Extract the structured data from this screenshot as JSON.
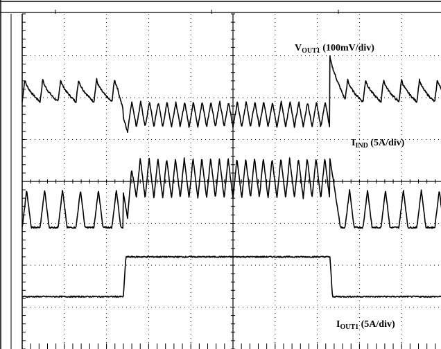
{
  "chart_data": {
    "type": "line",
    "title": "",
    "xlabel": "",
    "ylabel": "",
    "grid": true,
    "divisions": {
      "x": 10,
      "y": 8
    },
    "ylim": [
      0,
      8
    ],
    "xlim": [
      0,
      10
    ],
    "load_step": {
      "rise_div": 2.4,
      "fall_div": 7.3
    },
    "series": [
      {
        "name": "VOUT1 (100mV/div)",
        "scale": "100mV/div",
        "label_main": "V",
        "label_sub": "OUT1",
        "label_scale": " (100mV/div)",
        "baseline_div_light": 5.9,
        "baseline_div_heavy": 5.6,
        "ripple_div_light": 0.55,
        "ripple_div_heavy": 0.6,
        "pulses_per_div_light": 2.35,
        "pulses_per_div_heavy": 4.8
      },
      {
        "name": "IIND (5A/div)",
        "scale": "5A/div",
        "label_main": "I",
        "label_sub": "IND",
        "label_scale": " (5A/div)",
        "low_div_light": 2.9,
        "high_div_light": 3.8,
        "low_div_heavy": 3.6,
        "high_div_heavy": 4.55,
        "pulses_per_div_light": 2.35,
        "pulses_per_div_heavy": 4.8
      },
      {
        "name": "IOUT1 (5A/div)",
        "scale": "5A/div",
        "label_main": "I",
        "label_sub": "OUT1",
        "label_scale": " (5A/div)",
        "low_div": 1.25,
        "high_div": 2.2
      }
    ]
  }
}
